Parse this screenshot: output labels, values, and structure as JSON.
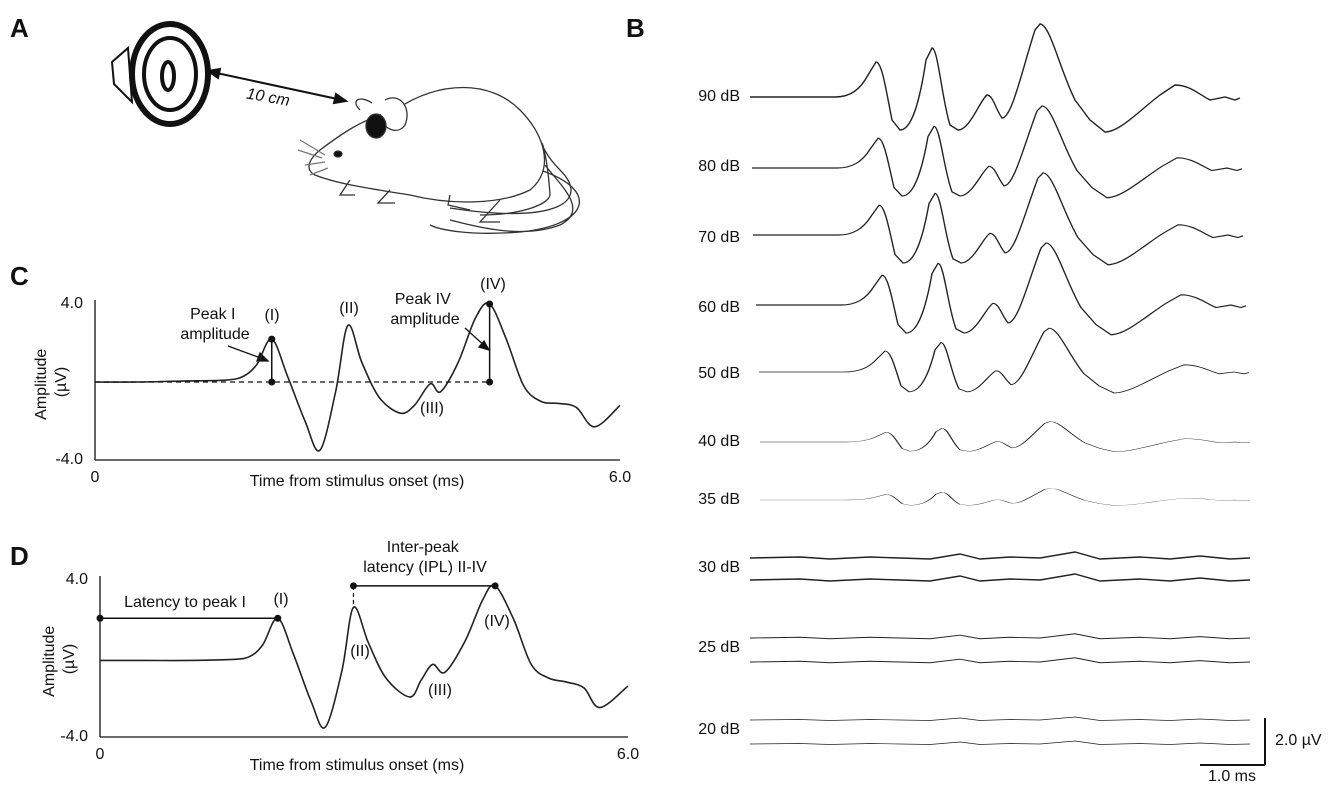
{
  "panels": {
    "A": {
      "label": "A",
      "distance": "10 cm"
    },
    "B": {
      "label": "B",
      "levels": [
        "90 dB",
        "80 dB",
        "70 dB",
        "60 dB",
        "50 dB",
        "40 dB",
        "35 dB",
        "30 dB",
        "25 dB",
        "20 dB"
      ],
      "scale_voltage": "2.0 µV",
      "scale_time": "1.0 ms"
    }
  },
  "chart_data": [
    {
      "type": "line",
      "panel": "C",
      "xlabel": "Time from stimulus onset (ms)",
      "ylabel": [
        "Amplitude",
        "(µV)"
      ],
      "xlim": [
        0,
        6
      ],
      "ylim": [
        -4,
        4
      ],
      "xticks": [
        0,
        {
          "value": 6,
          "label": "6.0"
        }
      ],
      "yticks": [
        {
          "value": -4,
          "label": "-4.0"
        },
        {
          "value": 4,
          "label": "4.0"
        }
      ],
      "x": [
        0,
        0.5,
        1.0,
        1.5,
        1.7,
        1.85,
        2.02,
        2.2,
        2.4,
        2.57,
        2.75,
        2.89,
        3.05,
        3.25,
        3.49,
        3.65,
        3.83,
        3.95,
        4.15,
        4.35,
        4.51,
        4.7,
        4.9,
        5.1,
        5.3,
        5.5,
        5.71,
        6.0
      ],
      "values": [
        0,
        0,
        0.05,
        0.1,
        0.3,
        0.9,
        2.2,
        0.3,
        -2.0,
        -3.5,
        -0.5,
        2.9,
        1.0,
        -0.8,
        -1.6,
        -1.2,
        -0.1,
        -0.5,
        1.0,
        3.3,
        4.0,
        2.2,
        -0.2,
        -1.0,
        -1.1,
        -1.3,
        -2.3,
        -1.2
      ],
      "color": "#222222",
      "annotations": {
        "peak_i": "(I)",
        "peak_ii": "(II)",
        "peak_iii": "(III)",
        "peak_iv": "(IV)",
        "peak_i_amplitude": [
          "Peak I",
          "amplitude"
        ],
        "peak_iv_amplitude": [
          "Peak IV",
          "amplitude"
        ]
      }
    },
    {
      "type": "line",
      "panel": "D",
      "xlabel": "Time from stimulus onset (ms)",
      "ylabel": [
        "Amplitude",
        "(µV)"
      ],
      "xlim": [
        0,
        6
      ],
      "ylim": [
        -4,
        4
      ],
      "xticks": [
        0,
        {
          "value": 6,
          "label": "6.0"
        }
      ],
      "yticks": [
        {
          "value": -4,
          "label": "-4.0"
        },
        {
          "value": 4,
          "label": "4.0"
        }
      ],
      "x": [
        0,
        0.5,
        1.0,
        1.5,
        1.7,
        1.85,
        2.02,
        2.2,
        2.4,
        2.56,
        2.75,
        2.88,
        3.05,
        3.25,
        3.52,
        3.65,
        3.78,
        3.92,
        4.15,
        4.35,
        4.49,
        4.7,
        4.9,
        5.1,
        5.3,
        5.5,
        5.68,
        6.0
      ],
      "values": [
        -0.1,
        -0.1,
        -0.1,
        -0.05,
        0.1,
        0.7,
        2.05,
        0.2,
        -2.2,
        -3.5,
        -0.6,
        2.6,
        0.8,
        -1.0,
        -1.96,
        -1.1,
        -0.3,
        -0.7,
        0.9,
        3.0,
        3.7,
        2.0,
        -0.3,
        -1.0,
        -1.2,
        -1.5,
        -2.5,
        -1.4
      ],
      "color": "#222222",
      "annotations": {
        "latency": "Latency to peak I",
        "peak_i": "(I)",
        "peak_ii": "(II)",
        "peak_iii": "(III)",
        "peak_iv": "(IV)",
        "ipl": [
          "Inter-peak",
          "latency (IPL) II-IV"
        ]
      }
    }
  ]
}
